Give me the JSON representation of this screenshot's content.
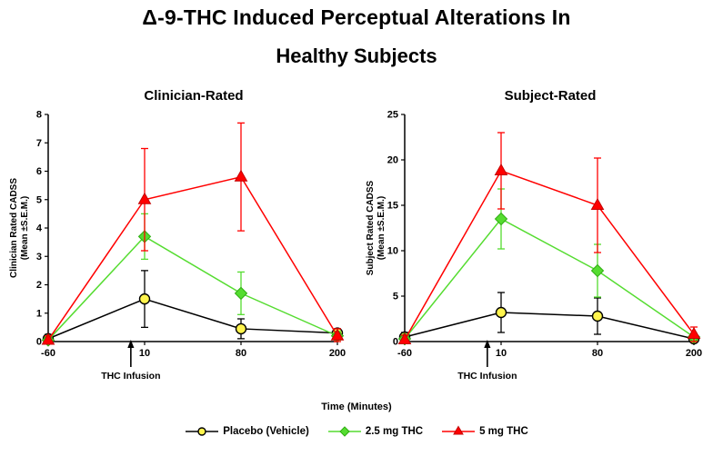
{
  "title_line1": "Δ-9-THC Induced Perceptual Alterations In",
  "title_line2": "Healthy Subjects",
  "xlabel": "Time (Minutes)",
  "annotation": {
    "label": "THC Infusion",
    "x": 0
  },
  "chart_data": [
    {
      "type": "line",
      "title": "Clinician-Rated",
      "ylabel": "Clinician Rated CADSS",
      "ylabel2": "(Mean ±S.E.M.)",
      "x": [
        -60,
        10,
        80,
        200
      ],
      "xtick_labels": [
        "-60",
        "10",
        "80",
        "200"
      ],
      "ylim": [
        0,
        8
      ],
      "ytick_step": 1,
      "legend_position": "bottom",
      "grid": false,
      "series": [
        {
          "name": "Placebo (Vehicle)",
          "marker": "circle",
          "color": "#000000",
          "fill": "#FFF44D",
          "values": [
            0.1,
            1.5,
            0.45,
            0.3
          ],
          "errors": [
            0.15,
            1.0,
            0.35,
            0.15
          ]
        },
        {
          "name": "2.5 mg THC",
          "marker": "diamond",
          "color": "#55DC30",
          "fill": "#55DC30",
          "values": [
            0.05,
            3.7,
            1.7,
            0.2
          ],
          "errors": [
            0.1,
            0.8,
            0.75,
            0.15
          ]
        },
        {
          "name": "5 mg THC",
          "marker": "triangle",
          "color": "#FF0000",
          "fill": "#FF0000",
          "values": [
            0.05,
            5.0,
            5.8,
            0.2
          ],
          "errors": [
            0.15,
            1.8,
            1.9,
            0.25
          ]
        }
      ]
    },
    {
      "type": "line",
      "title": "Subject-Rated",
      "ylabel": "Subject Rated CADSS",
      "ylabel2": "(Mean ±S.E.M.)",
      "x": [
        -60,
        10,
        80,
        200
      ],
      "xtick_labels": [
        "-60",
        "10",
        "80",
        "200"
      ],
      "ylim": [
        0,
        25
      ],
      "ytick_step": 5,
      "legend_position": "bottom",
      "grid": false,
      "series": [
        {
          "name": "Placebo (Vehicle)",
          "marker": "circle",
          "color": "#000000",
          "fill": "#FFF44D",
          "values": [
            0.5,
            3.2,
            2.8,
            0.3
          ],
          "errors": [
            0.5,
            2.2,
            2.0,
            0.3
          ]
        },
        {
          "name": "2.5 mg THC",
          "marker": "diamond",
          "color": "#55DC30",
          "fill": "#55DC30",
          "values": [
            0.3,
            13.5,
            7.8,
            0.5
          ],
          "errors": [
            0.4,
            3.3,
            2.9,
            0.4
          ]
        },
        {
          "name": "5 mg THC",
          "marker": "triangle",
          "color": "#FF0000",
          "fill": "#FF0000",
          "values": [
            0.2,
            18.8,
            15.0,
            0.8
          ],
          "errors": [
            0.5,
            4.2,
            5.2,
            0.8
          ]
        }
      ]
    }
  ]
}
